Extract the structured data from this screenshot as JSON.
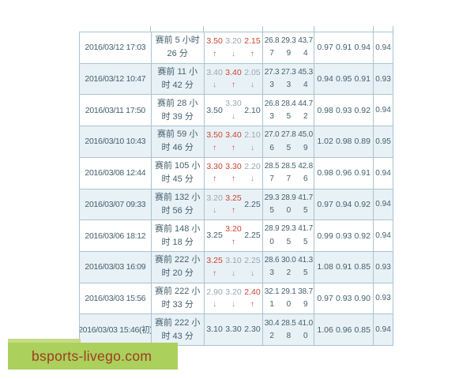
{
  "colors": {
    "border": "#a9c4cf",
    "alt_row_bg": "#e8f1f6",
    "text": "#44606e",
    "odds_up": "#cc4433",
    "odds_down": "#9aa8b0",
    "arrow_down": "#7f9aa8",
    "watermark_bg": "#abd05c",
    "watermark_bg_light": "#c3db86",
    "watermark_text": "#9c3c21"
  },
  "watermark": {
    "text": "bsports-livego.com"
  },
  "table": {
    "rows": [
      {
        "datetime": "2016/03/12 17:03",
        "countdown": "赛前 5 小时 26 分",
        "odds": [
          {
            "value": "3.50",
            "trend": "up"
          },
          {
            "value": "3.20",
            "trend": "down"
          },
          {
            "value": "2.15",
            "trend": "up"
          }
        ],
        "percentages": [
          "26.87",
          "29.39",
          "43.74"
        ],
        "kelly": [
          "0.97",
          "0.91",
          "0.94"
        ],
        "return_rate": "0.94"
      },
      {
        "datetime": "2016/03/12 10:47",
        "countdown": "赛前 11 小时 42 分",
        "odds": [
          {
            "value": "3.40",
            "trend": "down"
          },
          {
            "value": "3.40",
            "trend": "up"
          },
          {
            "value": "2.05",
            "trend": "down"
          }
        ],
        "percentages": [
          "27.33",
          "27.33",
          "45.34"
        ],
        "kelly": [
          "0.94",
          "0.95",
          "0.91"
        ],
        "return_rate": "0.93"
      },
      {
        "datetime": "2016/03/11 17:50",
        "countdown": "赛前 28 小时 39 分",
        "odds": [
          {
            "value": "3.50",
            "trend": "none"
          },
          {
            "value": "3.30",
            "trend": "down"
          },
          {
            "value": "2.10",
            "trend": "none"
          }
        ],
        "percentages": [
          "26.83",
          "28.45",
          "44.72"
        ],
        "kelly": [
          "0.98",
          "0.93",
          "0.92"
        ],
        "return_rate": "0.94"
      },
      {
        "datetime": "2016/03/10 10:43",
        "countdown": "赛前 59 小时 46 分",
        "odds": [
          {
            "value": "3.50",
            "trend": "up"
          },
          {
            "value": "3.40",
            "trend": "up"
          },
          {
            "value": "2.10",
            "trend": "down"
          }
        ],
        "percentages": [
          "27.06",
          "27.85",
          "45.09"
        ],
        "kelly": [
          "1.02",
          "0.98",
          "0.89"
        ],
        "return_rate": "0.95"
      },
      {
        "datetime": "2016/03/08 12:44",
        "countdown": "赛前 105 小时 45 分",
        "odds": [
          {
            "value": "3.30",
            "trend": "up"
          },
          {
            "value": "3.30",
            "trend": "up"
          },
          {
            "value": "2.20",
            "trend": "down"
          }
        ],
        "percentages": [
          "28.57",
          "28.57",
          "42.86"
        ],
        "kelly": [
          "0.98",
          "0.96",
          "0.91"
        ],
        "return_rate": "0.94"
      },
      {
        "datetime": "2016/03/07 09:33",
        "countdown": "赛前 132 小时 56 分",
        "odds": [
          {
            "value": "3.20",
            "trend": "down"
          },
          {
            "value": "3.25",
            "trend": "up"
          },
          {
            "value": "2.25",
            "trend": "none"
          }
        ],
        "percentages": [
          "29.35",
          "28.90",
          "41.75"
        ],
        "kelly": [
          "0.97",
          "0.94",
          "0.92"
        ],
        "return_rate": "0.94"
      },
      {
        "datetime": "2016/03/06 18:12",
        "countdown": "赛前 148 小时 18 分",
        "odds": [
          {
            "value": "3.25",
            "trend": "none"
          },
          {
            "value": "3.20",
            "trend": "up"
          },
          {
            "value": "2.25",
            "trend": "none"
          }
        ],
        "percentages": [
          "28.90",
          "29.35",
          "41.75"
        ],
        "kelly": [
          "0.99",
          "0.93",
          "0.92"
        ],
        "return_rate": "0.94"
      },
      {
        "datetime": "2016/03/03 16:09",
        "countdown": "赛前 222 小时 20 分",
        "odds": [
          {
            "value": "3.25",
            "trend": "up"
          },
          {
            "value": "3.10",
            "trend": "down"
          },
          {
            "value": "2.25",
            "trend": "down"
          }
        ],
        "percentages": [
          "28.63",
          "30.02",
          "41.35"
        ],
        "kelly": [
          "1.08",
          "0.91",
          "0.85"
        ],
        "return_rate": "0.93"
      },
      {
        "datetime": "2016/03/03 15:56",
        "countdown": "赛前 222 小时 33 分",
        "odds": [
          {
            "value": "2.90",
            "trend": "down"
          },
          {
            "value": "3.20",
            "trend": "down"
          },
          {
            "value": "2.40",
            "trend": "up"
          }
        ],
        "percentages": [
          "32.11",
          "29.10",
          "38.79"
        ],
        "kelly": [
          "0.97",
          "0.93",
          "0.90"
        ],
        "return_rate": "0.93"
      },
      {
        "datetime": "2016/03/03 15:46(初)",
        "countdown": "赛前 222 小时 43 分",
        "odds": [
          {
            "value": "3.10",
            "trend": "none"
          },
          {
            "value": "3.30",
            "trend": "none"
          },
          {
            "value": "2.30",
            "trend": "none"
          }
        ],
        "percentages": [
          "30.42",
          "28.58",
          "41.00"
        ],
        "kelly": [
          "1.06",
          "0.96",
          "0.85"
        ],
        "return_rate": "0.94"
      }
    ]
  }
}
